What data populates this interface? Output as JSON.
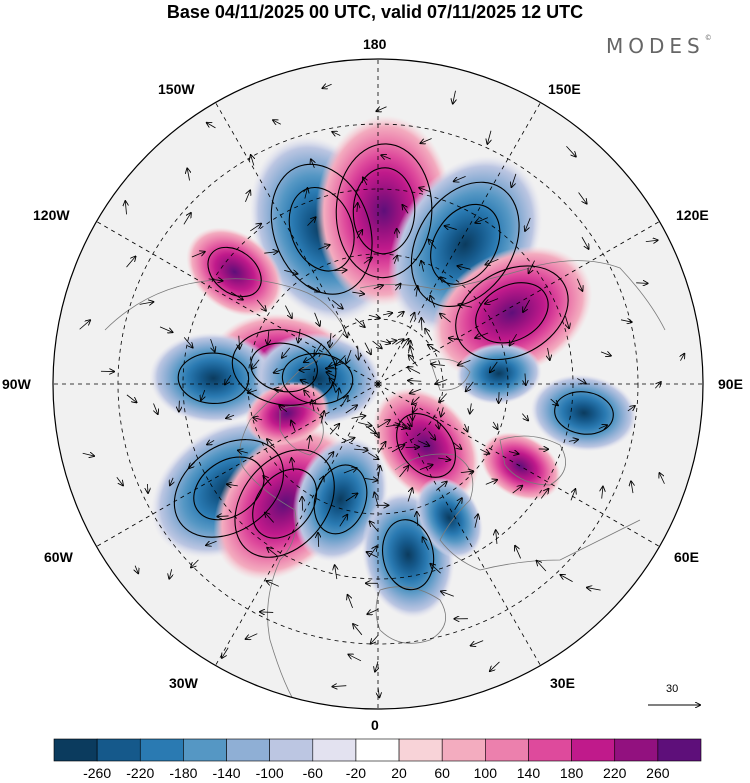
{
  "header": {
    "title": "Base 04/11/2025 00 UTC, valid 07/11/2025 12 UTC",
    "brand": "MODES",
    "brand_mark": "©"
  },
  "map": {
    "projection": "north-polar-stereographic",
    "longitude_labels": {
      "top": "180",
      "bottom": "0",
      "left": "90W",
      "right": "90E",
      "lon_150w": "150W",
      "lon_150e": "150E",
      "lon_120w": "120W",
      "lon_120e": "120E",
      "lon_60w": "60W",
      "lon_60e": "60E",
      "lon_30w": "30W",
      "lon_30e": "30E"
    },
    "reference_vector": {
      "label": "30"
    },
    "anomaly_centers": [
      {
        "sign": "negative",
        "lon": -160,
        "lat": 52,
        "value": -260
      },
      {
        "sign": "positive",
        "lon": 178,
        "lat": 50,
        "value": 260
      },
      {
        "sign": "negative",
        "lon": 148,
        "lat": 52,
        "value": -260
      },
      {
        "sign": "positive",
        "lon": 118,
        "lat": 55,
        "value": 220
      },
      {
        "sign": "positive",
        "lon": -128,
        "lat": 48,
        "value": 100
      },
      {
        "sign": "positive",
        "lon": -100,
        "lat": 68,
        "value": 180
      },
      {
        "sign": "negative",
        "lon": -92,
        "lat": 52,
        "value": -140
      },
      {
        "sign": "negative",
        "lon": -95,
        "lat": 76,
        "value": -140
      },
      {
        "sign": "negative",
        "lon": -55,
        "lat": 48,
        "value": -220
      },
      {
        "sign": "positive",
        "lon": -38,
        "lat": 55,
        "value": 220
      },
      {
        "sign": "negative",
        "lon": -18,
        "lat": 62,
        "value": -140
      },
      {
        "sign": "positive",
        "lon": 38,
        "lat": 72,
        "value": 140
      },
      {
        "sign": "negative",
        "lon": 10,
        "lat": 50,
        "value": -140
      },
      {
        "sign": "negative",
        "lon": 28,
        "lat": 55,
        "value": -60
      },
      {
        "sign": "negative",
        "lon": 82,
        "lat": 42,
        "value": -100
      },
      {
        "sign": "negative",
        "lon": 95,
        "lat": 62,
        "value": -60
      },
      {
        "sign": "positive",
        "lon": 60,
        "lat": 52,
        "value": 60
      },
      {
        "sign": "positive",
        "lon": -72,
        "lat": 68,
        "value": 60
      }
    ]
  },
  "colorbar": {
    "ticks": [
      "-260",
      "-220",
      "-180",
      "-140",
      "-100",
      "-60",
      "-20",
      "20",
      "60",
      "100",
      "140",
      "180",
      "220",
      "260"
    ],
    "colors": [
      "#0b3b5e",
      "#15598b",
      "#2a7ab2",
      "#5597c4",
      "#8fafd5",
      "#bcc6e2",
      "#e3e2f0",
      "#ffffff",
      "#f8d3d8",
      "#f3acbf",
      "#ec80ad",
      "#de4a9c",
      "#c01a8b",
      "#92117f",
      "#5e0f7a"
    ]
  }
}
